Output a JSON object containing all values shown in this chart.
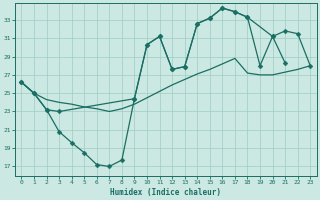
{
  "xlabel": "Humidex (Indice chaleur)",
  "bg_color": "#cce8e2",
  "grid_color": "#9dccc4",
  "line_color": "#1a6e64",
  "markersize": 2.5,
  "linewidth": 0.9,
  "xlim": [
    -0.5,
    23.5
  ],
  "ylim": [
    16.0,
    34.8
  ],
  "xticks": [
    0,
    1,
    2,
    3,
    4,
    5,
    6,
    7,
    8,
    9,
    10,
    11,
    12,
    13,
    14,
    15,
    16,
    17,
    18,
    19,
    20,
    21,
    22,
    23
  ],
  "yticks": [
    17,
    19,
    21,
    23,
    25,
    27,
    29,
    31,
    33
  ],
  "curve_dip_x": [
    0,
    1,
    2,
    3,
    4,
    5,
    6,
    7,
    8,
    9,
    10,
    11,
    12,
    13,
    14,
    15,
    16,
    17,
    18,
    20,
    21,
    22,
    23
  ],
  "curve_dip_y": [
    26.2,
    25.0,
    23.2,
    20.8,
    19.6,
    18.5,
    17.2,
    17.0,
    17.7,
    24.4,
    30.3,
    31.2,
    27.6,
    27.9,
    32.6,
    33.2,
    34.3,
    33.9,
    33.3,
    31.2,
    28.3,
    null,
    null
  ],
  "curve_straight_x": [
    0,
    1,
    2,
    3,
    4,
    5,
    6,
    7,
    8,
    9,
    10,
    11,
    12,
    13,
    14,
    15,
    16,
    17,
    18,
    19,
    20,
    21,
    22,
    23
  ],
  "curve_straight_y": [
    26.2,
    25.0,
    24.3,
    24.0,
    23.8,
    23.5,
    23.3,
    23.0,
    23.3,
    23.8,
    24.5,
    25.2,
    25.9,
    26.5,
    27.1,
    27.6,
    28.2,
    28.8,
    27.2,
    27.0,
    27.0,
    27.3,
    27.6,
    28.0
  ],
  "curve_upper_x": [
    0,
    1,
    2,
    3,
    9,
    10,
    11,
    12,
    13,
    14,
    15,
    16,
    17,
    18,
    19,
    20,
    21,
    22,
    23
  ],
  "curve_upper_y": [
    26.2,
    25.0,
    23.2,
    23.0,
    24.4,
    30.3,
    31.2,
    27.6,
    27.9,
    32.6,
    33.2,
    34.3,
    33.9,
    33.3,
    28.0,
    31.2,
    31.8,
    31.5,
    28.0
  ]
}
